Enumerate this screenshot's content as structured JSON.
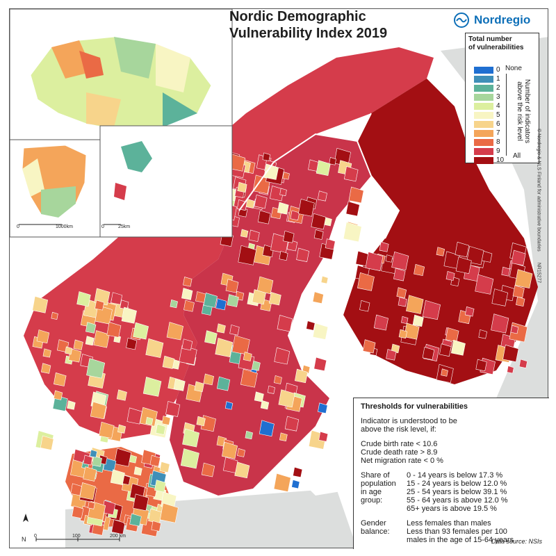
{
  "map": {
    "title_line1": "Nordic Demographic",
    "title_line2": "Vulnerability Index 2019",
    "brand": "Nordregio",
    "north_label": "N",
    "scale_main": [
      "0",
      "100",
      "200 km"
    ],
    "scale_greenland": [
      "0",
      "1000km"
    ],
    "scale_faroe": [
      "0",
      "25km"
    ],
    "credits": "Nordregio & NLS Finland for administrative boundaries",
    "copyright_symbol": "©",
    "map_id": "NR15277",
    "data_source": "Data source: NSIs",
    "colors": {
      "background": "#eaeceb",
      "sea": "#ffffff",
      "land_other": "#d4d6d5",
      "borders": "#ffffff"
    }
  },
  "legend": {
    "title_line1": "Total number",
    "title_line2": "of vulnerabilities",
    "none_label": "None",
    "all_label": "All",
    "side_label": "Number of indicators above the risk level",
    "classes": [
      {
        "value": "0",
        "color": "#1f6fd1"
      },
      {
        "value": "1",
        "color": "#3f8fb8"
      },
      {
        "value": "2",
        "color": "#5cb29a"
      },
      {
        "value": "3",
        "color": "#a7d69c"
      },
      {
        "value": "4",
        "color": "#dcef9f"
      },
      {
        "value": "5",
        "color": "#f8f5c3"
      },
      {
        "value": "6",
        "color": "#f7d48b"
      },
      {
        "value": "7",
        "color": "#f4a55a"
      },
      {
        "value": "8",
        "color": "#ea6a45"
      },
      {
        "value": "9",
        "color": "#d53c4b"
      },
      {
        "value": "10",
        "color": "#a30f13"
      }
    ]
  },
  "thresholds": {
    "title": "Thresholds for vulnerabilities",
    "intro_line1": "Indicator is understood to be",
    "intro_line2": "above the risk level, if:",
    "rates": [
      "Crude birth rate < 10.6",
      "Crude death rate > 8.9",
      "Net migration rate <   0 %"
    ],
    "share_labels": [
      "Share of",
      "population",
      "in age",
      "group:",
      ""
    ],
    "share_values": [
      "0 - 14    years is below 17.3 %",
      "15 - 24 years is below 12.0 %",
      "25 - 54 years is below 39.1 %",
      "55 - 64 years is above 12.0 %",
      "65+       years is above 19.5 %"
    ],
    "gender_labels": [
      "Gender",
      "balance:",
      ""
    ],
    "gender_values": [
      "Less females than males",
      "Less than 93 females per 100",
      "males in the age of 15-64 years"
    ]
  }
}
